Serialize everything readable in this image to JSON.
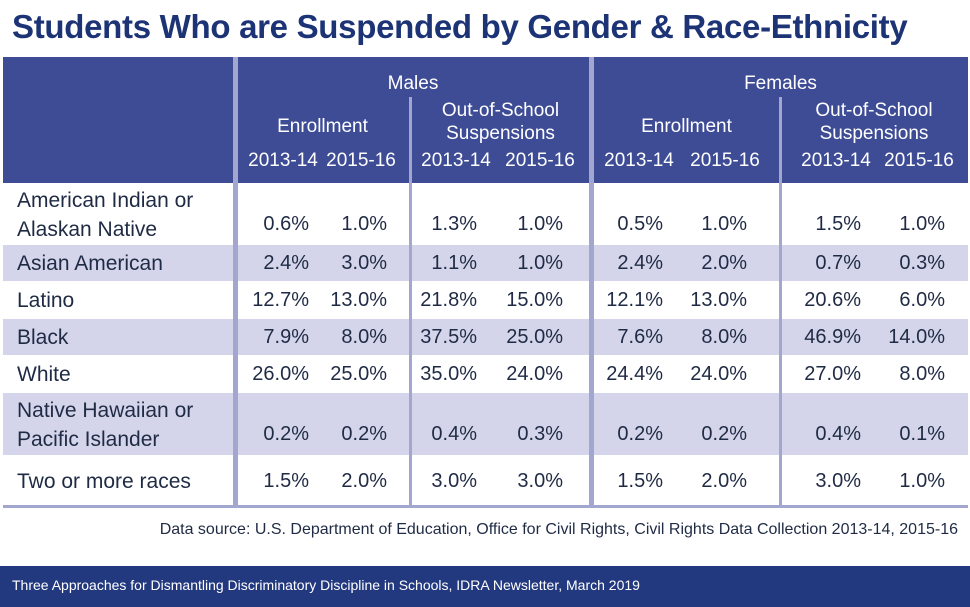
{
  "chart_data": {
    "type": "table",
    "title": "Students Who are Suspended by Gender & Race-Ethnicity",
    "groups": [
      {
        "name": "Males",
        "subgroups": [
          {
            "name": "Enrollment",
            "years": [
              "2013-14",
              "2015-16"
            ]
          },
          {
            "name": "Out-of-School Suspensions",
            "name_lines": [
              "Out-of-School",
              "Suspensions"
            ],
            "years": [
              "2013-14",
              "2015-16"
            ]
          }
        ]
      },
      {
        "name": "Females",
        "subgroups": [
          {
            "name": "Enrollment",
            "years": [
              "2013-14",
              "2015-16"
            ]
          },
          {
            "name": "Out-of-School Suspensions",
            "name_lines": [
              "Out-of-School",
              "Suspensions"
            ],
            "years": [
              "2013-14",
              "2015-16"
            ]
          }
        ]
      }
    ],
    "rows": [
      {
        "label_lines": [
          "American Indian or",
          "Alaskan Native"
        ],
        "values": [
          "0.6%",
          "1.0%",
          "1.3%",
          "1.0%",
          "0.5%",
          "1.0%",
          "1.5%",
          "1.0%"
        ]
      },
      {
        "label_lines": [
          "Asian American"
        ],
        "values": [
          "2.4%",
          "3.0%",
          "1.1%",
          "1.0%",
          "2.4%",
          "2.0%",
          "0.7%",
          "0.3%"
        ]
      },
      {
        "label_lines": [
          "Latino"
        ],
        "values": [
          "12.7%",
          "13.0%",
          "21.8%",
          "15.0%",
          "12.1%",
          "13.0%",
          "20.6%",
          "6.0%"
        ]
      },
      {
        "label_lines": [
          "Black"
        ],
        "values": [
          "7.9%",
          "8.0%",
          "37.5%",
          "25.0%",
          "7.6%",
          "8.0%",
          "46.9%",
          "14.0%"
        ]
      },
      {
        "label_lines": [
          "White"
        ],
        "values": [
          "26.0%",
          "25.0%",
          "35.0%",
          "24.0%",
          "24.4%",
          "24.0%",
          "27.0%",
          "8.0%"
        ]
      },
      {
        "label_lines": [
          "Native Hawaiian or",
          "Pacific Islander"
        ],
        "values": [
          "0.2%",
          "0.2%",
          "0.4%",
          "0.3%",
          "0.2%",
          "0.2%",
          "0.4%",
          "0.1%"
        ]
      },
      {
        "label_lines": [
          "Two or more races"
        ],
        "values": [
          "1.5%",
          "2.0%",
          "3.0%",
          "3.0%",
          "1.5%",
          "2.0%",
          "3.0%",
          "1.0%"
        ]
      }
    ],
    "row_shading": [
      "white",
      "shaded",
      "white",
      "shaded",
      "white",
      "shaded",
      "white"
    ]
  },
  "source": "Data source: U.S. Department of Education, Office for Civil Rights, Civil Rights Data Collection 2013-14, 2015-16",
  "footer": "Three Approaches for Dismantling Discriminatory Discipline in Schools, IDRA Newsletter, March 2019",
  "colors": {
    "title": "#1c3375",
    "header_bg": "#3e4c96",
    "row_shade": "#d4d5ea",
    "divider": "#a3a6cf",
    "footer_bg": "#23397f"
  }
}
